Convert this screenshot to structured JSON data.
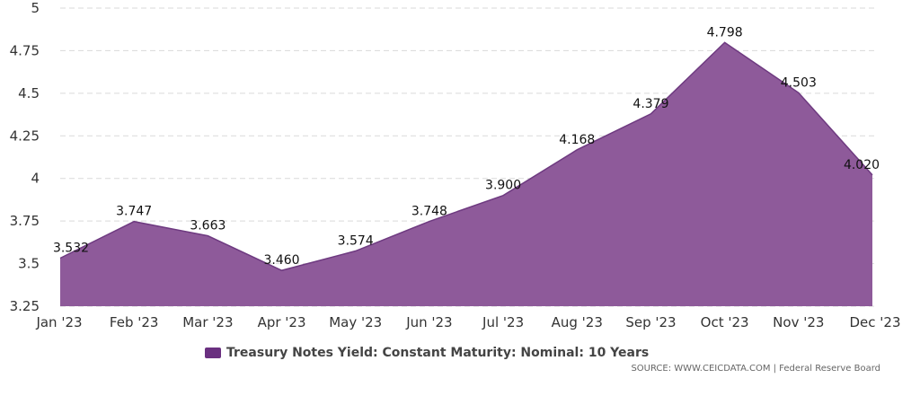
{
  "chart_data": {
    "type": "area",
    "categories": [
      "Jan '23",
      "Feb '23",
      "Mar '23",
      "Apr '23",
      "May '23",
      "Jun '23",
      "Jul '23",
      "Aug '23",
      "Sep '23",
      "Oct '23",
      "Nov '23",
      "Dec '23"
    ],
    "series": [
      {
        "name": "Treasury Notes Yield: Constant Maturity: Nominal: 10 Years",
        "values": [
          3.532,
          3.747,
          3.663,
          3.46,
          3.574,
          3.748,
          3.9,
          4.168,
          4.379,
          4.798,
          4.503,
          4.02
        ],
        "labels": [
          "3.532",
          "3.747",
          "3.663",
          "3.460",
          "3.574",
          "3.748",
          "3.900",
          "4.168",
          "4.379",
          "4.798",
          "4.503",
          "4.020"
        ]
      }
    ],
    "ylim": [
      3.25,
      5
    ],
    "yticks": [
      "3.25",
      "3.5",
      "3.75",
      "4",
      "4.25",
      "4.5",
      "4.75",
      "5"
    ],
    "grid": true,
    "legend_position": "bottom",
    "colors": {
      "area_fill": "#8e5a9a",
      "area_line": "#6e3a80",
      "legend_swatch": "#6a3080",
      "grid": "#d9d9d9"
    }
  },
  "legend": {
    "label": "Treasury Notes Yield: Constant Maturity: Nominal: 10 Years"
  },
  "source": {
    "text": "SOURCE: WWW.CEICDATA.COM | Federal Reserve Board"
  }
}
